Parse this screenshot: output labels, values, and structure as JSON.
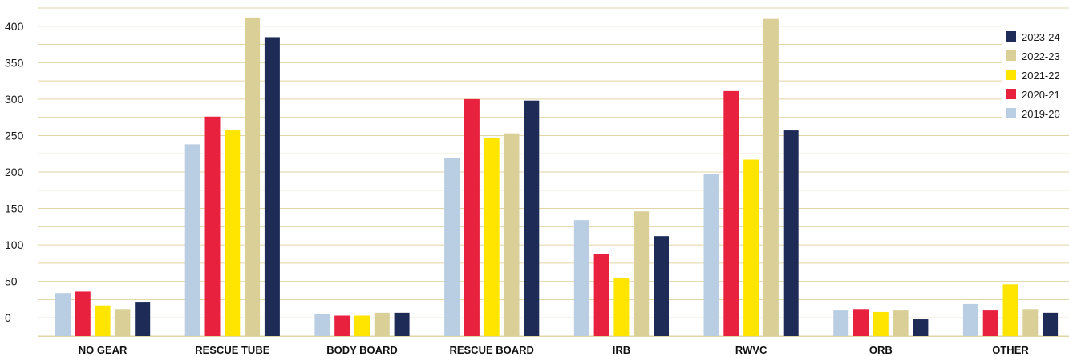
{
  "chart_data": {
    "type": "bar",
    "categories": [
      "NO GEAR",
      "RESCUE TUBE",
      "BODY BOARD",
      "RESCUE BOARD",
      "IRB",
      "RWVC",
      "ORB",
      "OTHER"
    ],
    "series": [
      {
        "name": "2019-20",
        "color": "#b9cde3",
        "values": [
          34,
          238,
          5,
          219,
          134,
          197,
          10,
          19
        ]
      },
      {
        "name": "2020-21",
        "color": "#e8213f",
        "values": [
          36,
          276,
          3,
          300,
          87,
          311,
          12,
          10
        ]
      },
      {
        "name": "2021-22",
        "color": "#ffe500",
        "values": [
          17,
          257,
          3,
          247,
          55,
          217,
          8,
          46
        ]
      },
      {
        "name": "2022-23",
        "color": "#d9cf97",
        "values": [
          12,
          412,
          7,
          253,
          146,
          410,
          10,
          12
        ]
      },
      {
        "name": "2023-24",
        "color": "#1d2b56",
        "values": [
          21,
          385,
          7,
          298,
          112,
          257,
          -2,
          7
        ]
      }
    ],
    "yticks": [
      0,
      50,
      100,
      150,
      200,
      250,
      300,
      350,
      400
    ],
    "ylim": [
      -25,
      425
    ],
    "grid": true,
    "grid_color": "#e2d6a4",
    "legend_placement": "top-right",
    "legend_order": [
      "2023-24",
      "2022-23",
      "2021-22",
      "2020-21",
      "2019-20"
    ]
  }
}
